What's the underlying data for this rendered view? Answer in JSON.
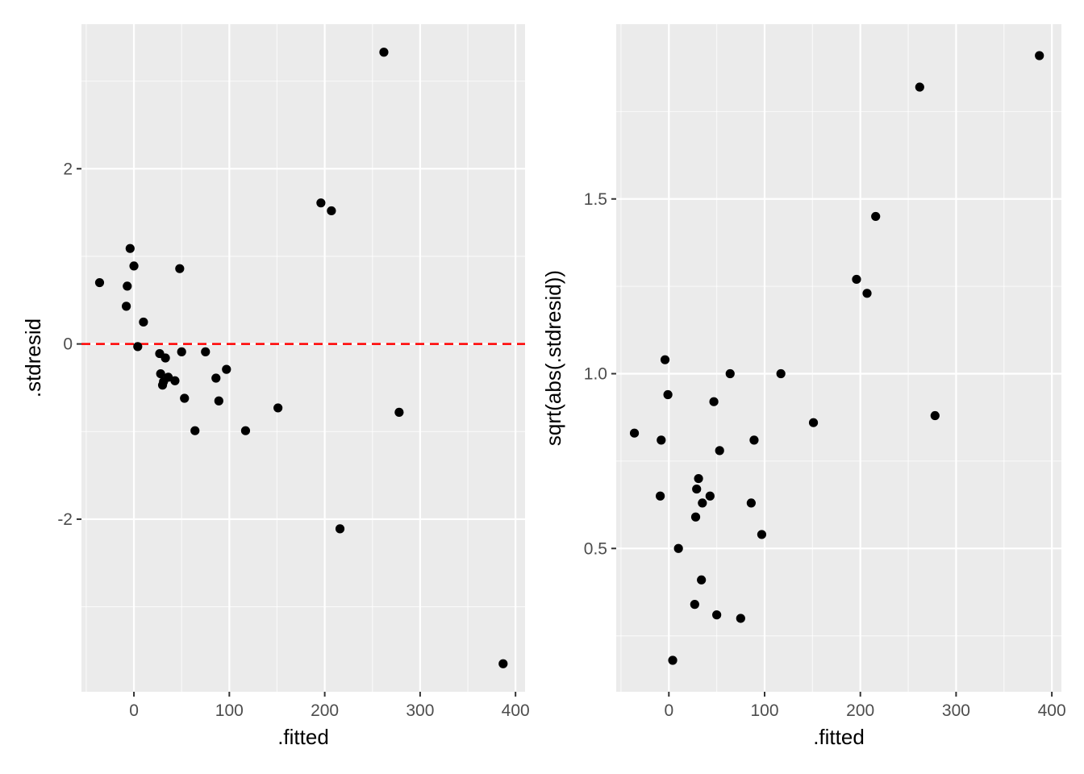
{
  "colors": {
    "panel_background": "#EBEBEB",
    "grid_major": "#FFFFFF",
    "points": "#000000",
    "reference_line": "#FF0000",
    "tick_text": "#4D4D4D"
  },
  "chart_data": [
    {
      "type": "scatter",
      "title": "",
      "xlabel": ".fitted",
      "ylabel": ".stdresid",
      "xlim": [
        -55,
        410
      ],
      "ylim": [
        -3.97,
        3.65
      ],
      "x_ticks": [
        0,
        100,
        200,
        300,
        400
      ],
      "x_tick_labels": [
        "0",
        "100",
        "200",
        "300",
        "400"
      ],
      "y_ticks": [
        -2,
        0,
        2
      ],
      "y_tick_labels": [
        "-2",
        "0",
        "2"
      ],
      "grid": true,
      "reference_line": {
        "y": 0,
        "style": "dashed",
        "color": "#FF0000"
      },
      "points": [
        {
          "x": -36,
          "y": 0.7
        },
        {
          "x": -8,
          "y": 0.43
        },
        {
          "x": -7,
          "y": 0.66
        },
        {
          "x": -4,
          "y": 1.09
        },
        {
          "x": 0,
          "y": 0.89
        },
        {
          "x": 4,
          "y": -0.03
        },
        {
          "x": 10,
          "y": 0.25
        },
        {
          "x": 27,
          "y": -0.11
        },
        {
          "x": 28,
          "y": -0.34
        },
        {
          "x": 30,
          "y": -0.47
        },
        {
          "x": 31,
          "y": -0.43
        },
        {
          "x": 33,
          "y": -0.16
        },
        {
          "x": 36,
          "y": -0.38
        },
        {
          "x": 43,
          "y": -0.42
        },
        {
          "x": 48,
          "y": 0.86
        },
        {
          "x": 50,
          "y": -0.09
        },
        {
          "x": 53,
          "y": -0.62
        },
        {
          "x": 64,
          "y": -0.99
        },
        {
          "x": 75,
          "y": -0.09
        },
        {
          "x": 86,
          "y": -0.39
        },
        {
          "x": 89,
          "y": -0.65
        },
        {
          "x": 97,
          "y": -0.29
        },
        {
          "x": 117,
          "y": -0.99
        },
        {
          "x": 151,
          "y": -0.73
        },
        {
          "x": 196,
          "y": 1.61
        },
        {
          "x": 207,
          "y": 1.52
        },
        {
          "x": 216,
          "y": -2.11
        },
        {
          "x": 262,
          "y": 3.33
        },
        {
          "x": 278,
          "y": -0.78
        },
        {
          "x": 387,
          "y": -3.65
        }
      ]
    },
    {
      "type": "scatter",
      "title": "",
      "xlabel": ".fitted",
      "ylabel": "sqrt(abs(.stdresid))",
      "xlim": [
        -55,
        410
      ],
      "ylim": [
        0.09,
        2.0
      ],
      "x_ticks": [
        0,
        100,
        200,
        300,
        400
      ],
      "x_tick_labels": [
        "0",
        "100",
        "200",
        "300",
        "400"
      ],
      "y_ticks": [
        0.5,
        1.0,
        1.5
      ],
      "y_tick_labels": [
        "0.5",
        "1.0",
        "1.5"
      ],
      "grid": true,
      "points": [
        {
          "x": -36,
          "y": 0.83
        },
        {
          "x": -8,
          "y": 0.81
        },
        {
          "x": -9,
          "y": 0.65
        },
        {
          "x": -4,
          "y": 1.04
        },
        {
          "x": -1,
          "y": 0.94
        },
        {
          "x": 4,
          "y": 0.18
        },
        {
          "x": 10,
          "y": 0.5
        },
        {
          "x": 27,
          "y": 0.34
        },
        {
          "x": 28,
          "y": 0.59
        },
        {
          "x": 29,
          "y": 0.67
        },
        {
          "x": 31,
          "y": 0.7
        },
        {
          "x": 34,
          "y": 0.41
        },
        {
          "x": 35,
          "y": 0.63
        },
        {
          "x": 43,
          "y": 0.65
        },
        {
          "x": 47,
          "y": 0.92
        },
        {
          "x": 50,
          "y": 0.31
        },
        {
          "x": 53,
          "y": 0.78
        },
        {
          "x": 64,
          "y": 1.0
        },
        {
          "x": 75,
          "y": 0.3
        },
        {
          "x": 86,
          "y": 0.63
        },
        {
          "x": 89,
          "y": 0.81
        },
        {
          "x": 97,
          "y": 0.54
        },
        {
          "x": 117,
          "y": 1.0
        },
        {
          "x": 151,
          "y": 0.86
        },
        {
          "x": 196,
          "y": 1.27
        },
        {
          "x": 207,
          "y": 1.23
        },
        {
          "x": 216,
          "y": 1.45
        },
        {
          "x": 262,
          "y": 1.82
        },
        {
          "x": 278,
          "y": 0.88
        },
        {
          "x": 387,
          "y": 1.91
        }
      ]
    }
  ]
}
